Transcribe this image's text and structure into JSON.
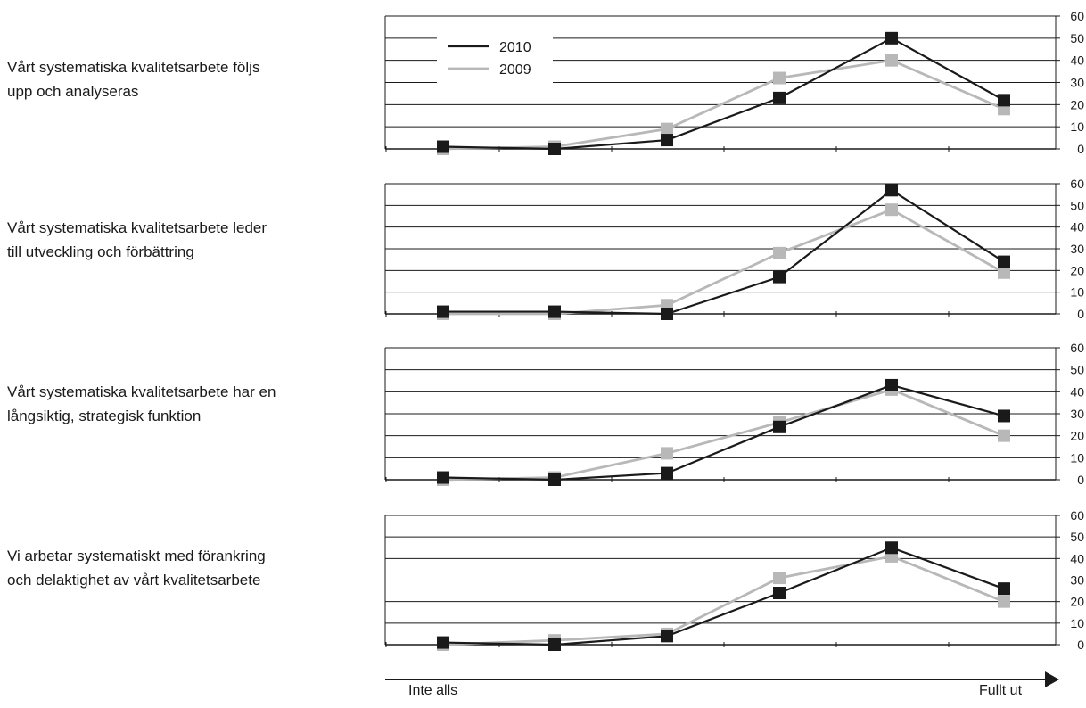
{
  "chart_data": [
    {
      "type": "line",
      "title": "Vårt systematiska kvalitetsarbete följs upp och analyseras",
      "x": [
        1,
        2,
        3,
        4,
        5,
        6
      ],
      "ylim": [
        0,
        60
      ],
      "yticks": [
        0,
        10,
        20,
        30,
        40,
        50,
        60
      ],
      "grid": true,
      "series": [
        {
          "name": "2010",
          "values": [
            1,
            0,
            4,
            23,
            50,
            22
          ]
        },
        {
          "name": "2009",
          "values": [
            0,
            1,
            9,
            32,
            40,
            18
          ]
        }
      ]
    },
    {
      "type": "line",
      "title": "Vårt systematiska kvalitetsarbete leder till utveckling och förbättring",
      "x": [
        1,
        2,
        3,
        4,
        5,
        6
      ],
      "ylim": [
        0,
        60
      ],
      "yticks": [
        0,
        10,
        20,
        30,
        40,
        50,
        60
      ],
      "grid": true,
      "series": [
        {
          "name": "2010",
          "values": [
            1,
            1,
            0,
            17,
            57,
            24
          ]
        },
        {
          "name": "2009",
          "values": [
            0,
            0,
            4,
            28,
            48,
            19
          ]
        }
      ]
    },
    {
      "type": "line",
      "title": "Vårt systematiska kvalitetsarbete har en långsiktig, strategisk funktion",
      "x": [
        1,
        2,
        3,
        4,
        5,
        6
      ],
      "ylim": [
        0,
        60
      ],
      "yticks": [
        0,
        10,
        20,
        30,
        40,
        50,
        60
      ],
      "grid": true,
      "series": [
        {
          "name": "2010",
          "values": [
            1,
            0,
            3,
            24,
            43,
            29
          ]
        },
        {
          "name": "2009",
          "values": [
            0,
            1,
            12,
            26,
            41,
            20
          ]
        }
      ]
    },
    {
      "type": "line",
      "title": "Vi arbetar systematiskt med förankring och delaktighet av vårt kvalitetsarbete",
      "x": [
        1,
        2,
        3,
        4,
        5,
        6
      ],
      "ylim": [
        0,
        60
      ],
      "yticks": [
        0,
        10,
        20,
        30,
        40,
        50,
        60
      ],
      "grid": true,
      "series": [
        {
          "name": "2010",
          "values": [
            1,
            0,
            4,
            24,
            45,
            26
          ]
        },
        {
          "name": "2009",
          "values": [
            0,
            2,
            5,
            31,
            41,
            20
          ]
        }
      ]
    }
  ],
  "labels": [
    [
      "Vårt systematiska kvalitetsarbete följs",
      "upp och analyseras"
    ],
    [
      "Vårt systematiska kvalitetsarbete leder",
      "till utveckling och förbättring"
    ],
    [
      "Vårt systematiska kvalitetsarbete har en",
      "långsiktig, strategisk funktion"
    ],
    [
      "Vi arbetar systematiskt med förankring",
      "och delaktighet av vårt kvalitetsarbete"
    ]
  ],
  "legend": {
    "placement": "top-left",
    "series": [
      "2010",
      "2009"
    ]
  },
  "arrow": {
    "start_label": "Inte alls",
    "end_label": "Fullt ut"
  },
  "colors": {
    "2010": "#1a1a1a",
    "2009": "#b8b8b8",
    "grid": "#1a1a1a"
  }
}
